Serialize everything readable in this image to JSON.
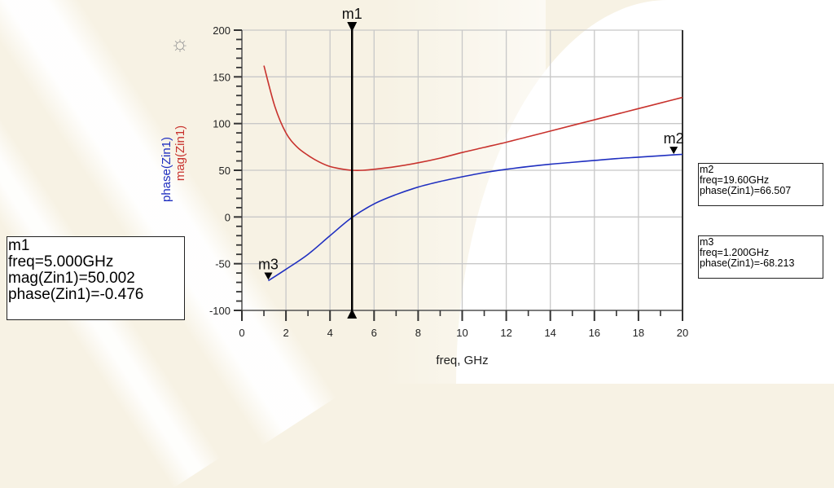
{
  "chart_data": {
    "type": "line",
    "title": "",
    "xlabel": "freq, GHz",
    "ylabel": [
      "phase(Zin1)",
      "mag(Zin1)"
    ],
    "xlim": [
      0,
      20
    ],
    "ylim": [
      -100,
      200
    ],
    "x_ticks": [
      0,
      2,
      4,
      6,
      8,
      10,
      12,
      14,
      16,
      18,
      20
    ],
    "y_ticks": [
      -100,
      -50,
      0,
      50,
      100,
      150,
      200
    ],
    "grid": true,
    "series": [
      {
        "name": "mag(Zin1)",
        "color": "#c8322d",
        "x": [
          1.0,
          1.5,
          2,
          2.5,
          3,
          3.5,
          4,
          4.5,
          5,
          5.5,
          6,
          7,
          8,
          9,
          10,
          11,
          12,
          13,
          14,
          15,
          16,
          17,
          18,
          19,
          20
        ],
        "values": [
          162,
          118,
          90,
          75,
          66,
          59,
          54,
          51.5,
          50,
          50,
          51,
          54,
          58,
          63,
          69,
          74.5,
          80,
          86,
          92,
          98,
          104,
          110,
          116,
          122,
          128
        ]
      },
      {
        "name": "phase(Zin1)",
        "color": "#1f2fc0",
        "x": [
          1.2,
          2,
          3,
          4,
          5,
          6,
          7,
          8,
          9,
          10,
          11,
          12,
          13,
          14,
          15,
          16,
          17,
          18,
          19,
          19.6,
          20
        ],
        "values": [
          -68.2,
          -56,
          -40,
          -20,
          -0.5,
          14,
          24,
          32,
          38,
          43,
          47.5,
          51,
          54,
          56.5,
          58.5,
          60.5,
          62.5,
          64,
          65.5,
          66.5,
          67
        ]
      }
    ],
    "markers": [
      {
        "name": "m1",
        "type": "vertical-line",
        "freq": 5.0,
        "lines": [
          "m1",
          "freq=5.000GHz",
          "mag(Zin1)=50.002",
          "phase(Zin1)=-0.476"
        ]
      },
      {
        "name": "m2",
        "freq": 19.6,
        "value": 66.507,
        "lines": [
          "m2",
          "freq=19.60GHz",
          "phase(Zin1)=66.507"
        ]
      },
      {
        "name": "m3",
        "freq": 1.2,
        "value": -68.213,
        "lines": [
          "m3",
          "freq=1.200GHz",
          "phase(Zin1)=-68.213"
        ]
      }
    ]
  },
  "icons": {
    "sun": "☼"
  }
}
